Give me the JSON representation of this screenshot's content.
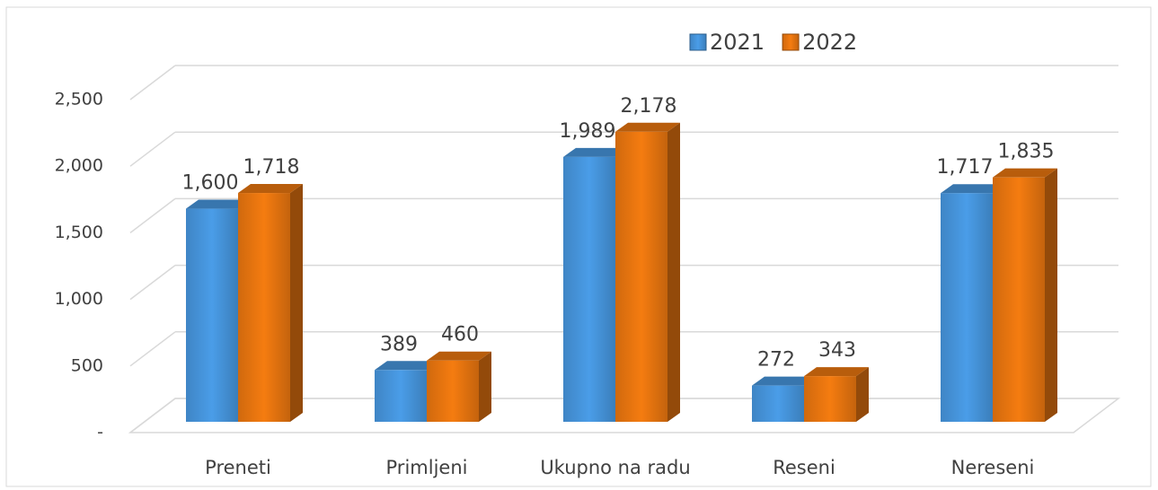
{
  "chart_data": {
    "type": "bar3d",
    "categories": [
      "Preneti",
      "Primljeni",
      "Ukupno na radu",
      "Reseni",
      "Nereseni"
    ],
    "series": [
      {
        "name": "2021",
        "color": "#4a9de8",
        "values": [
          1600,
          389,
          1989,
          272,
          1717
        ],
        "value_labels": [
          "1,600",
          "389",
          "1,989",
          "272",
          "1,717"
        ]
      },
      {
        "name": "2022",
        "color": "#f57c10",
        "values": [
          1718,
          460,
          2178,
          343,
          1835
        ],
        "value_labels": [
          "1,718",
          "460",
          "2,178",
          "343",
          "1,835"
        ]
      }
    ],
    "ylim": [
      0,
      2500
    ],
    "yticks": [
      {
        "value": 0,
        "label": "-"
      },
      500,
      {
        "value": 1000,
        "label": "1,000"
      },
      {
        "value": 1500,
        "label": "1,500"
      },
      {
        "value": 2000,
        "label": "2,000"
      },
      {
        "value": 2500,
        "label": "2,500"
      }
    ],
    "grid": true,
    "legend": "top"
  }
}
